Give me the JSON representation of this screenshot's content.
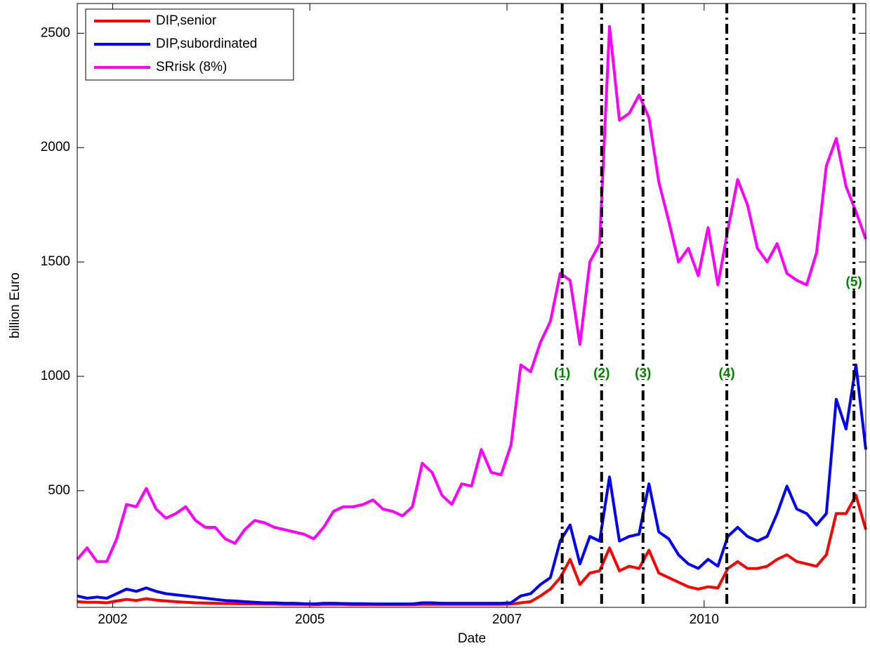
{
  "chart_data": {
    "type": "line",
    "xlabel": "Date",
    "ylabel": "billion Euro",
    "xlim": [
      0,
      400
    ],
    "ylim": [
      -10,
      2630
    ],
    "xticks": [
      {
        "value": 18,
        "label": "2002"
      },
      {
        "value": 118,
        "label": "2005"
      },
      {
        "value": 218,
        "label": "2007"
      },
      {
        "value": 318,
        "label": "2010"
      }
    ],
    "yticks": [
      500,
      1000,
      1500,
      2000,
      2500
    ],
    "legend": "upper left",
    "x": [
      0,
      5,
      10,
      15,
      20,
      25,
      30,
      35,
      40,
      45,
      50,
      55,
      60,
      65,
      70,
      75,
      80,
      85,
      90,
      95,
      100,
      105,
      110,
      115,
      120,
      125,
      130,
      135,
      140,
      145,
      150,
      155,
      160,
      165,
      170,
      175,
      180,
      185,
      190,
      195,
      200,
      205,
      210,
      215,
      220,
      225,
      230,
      235,
      240,
      245,
      250,
      255,
      260,
      265,
      270,
      275,
      280,
      285,
      290,
      295,
      300,
      305,
      310,
      315,
      320,
      325,
      330,
      335,
      340,
      345,
      350,
      355,
      360,
      365,
      370,
      375,
      380,
      385,
      390,
      395,
      400
    ],
    "series": [
      {
        "name": "DIP,senior",
        "color": "#ff0000",
        "values": [
          15,
          12,
          12,
          10,
          18,
          25,
          20,
          28,
          22,
          18,
          15,
          12,
          10,
          9,
          8,
          7,
          6,
          5,
          5,
          4,
          4,
          3,
          3,
          3,
          2,
          3,
          3,
          3,
          2,
          2,
          2,
          2,
          2,
          2,
          2,
          3,
          3,
          3,
          3,
          3,
          3,
          3,
          3,
          3,
          4,
          10,
          15,
          40,
          70,
          120,
          200,
          90,
          140,
          150,
          250,
          150,
          170,
          160,
          240,
          140,
          120,
          100,
          80,
          70,
          80,
          75,
          160,
          190,
          160,
          160,
          170,
          200,
          220,
          190,
          180,
          170,
          220,
          400,
          400,
          480,
          330
        ]
      },
      {
        "name": "DIP,subordinated",
        "color": "#0000ff",
        "values": [
          40,
          30,
          35,
          30,
          50,
          70,
          60,
          75,
          60,
          50,
          45,
          40,
          35,
          30,
          25,
          20,
          18,
          15,
          12,
          10,
          10,
          8,
          8,
          6,
          5,
          8,
          8,
          7,
          6,
          6,
          5,
          5,
          5,
          5,
          5,
          10,
          10,
          8,
          8,
          8,
          8,
          8,
          8,
          8,
          10,
          40,
          50,
          90,
          120,
          280,
          350,
          180,
          300,
          280,
          560,
          280,
          300,
          310,
          530,
          320,
          290,
          220,
          180,
          160,
          200,
          170,
          300,
          340,
          300,
          280,
          300,
          400,
          520,
          420,
          400,
          350,
          400,
          900,
          770,
          1050,
          680
        ]
      },
      {
        "name": "SRrisk (8%)",
        "color": "#ff00ff",
        "values": [
          200,
          250,
          190,
          190,
          290,
          440,
          430,
          510,
          420,
          380,
          400,
          430,
          370,
          340,
          340,
          290,
          270,
          330,
          370,
          360,
          340,
          330,
          320,
          310,
          290,
          340,
          410,
          430,
          430,
          440,
          460,
          420,
          410,
          390,
          430,
          620,
          580,
          480,
          440,
          530,
          520,
          680,
          580,
          570,
          700,
          1050,
          1020,
          1150,
          1240,
          1450,
          1420,
          1140,
          1500,
          1580,
          2530,
          2120,
          2150,
          2230,
          2130,
          1850,
          1680,
          1500,
          1560,
          1440,
          1650,
          1400,
          1640,
          1860,
          1750,
          1560,
          1500,
          1580,
          1450,
          1420,
          1400,
          1540,
          1920,
          2040,
          1830,
          1720,
          1600
        ]
      }
    ],
    "annotations": [
      {
        "label": "(1)",
        "x": 246,
        "y": 1010,
        "color": "#008000"
      },
      {
        "label": "(2)",
        "x": 266,
        "y": 1010,
        "color": "#008000"
      },
      {
        "label": "(3)",
        "x": 287,
        "y": 1010,
        "color": "#008000"
      },
      {
        "label": "(4)",
        "x": 329.5,
        "y": 1010,
        "color": "#008000"
      },
      {
        "label": "(5)",
        "x": 394,
        "y": 1410,
        "color": "#008000"
      }
    ]
  }
}
